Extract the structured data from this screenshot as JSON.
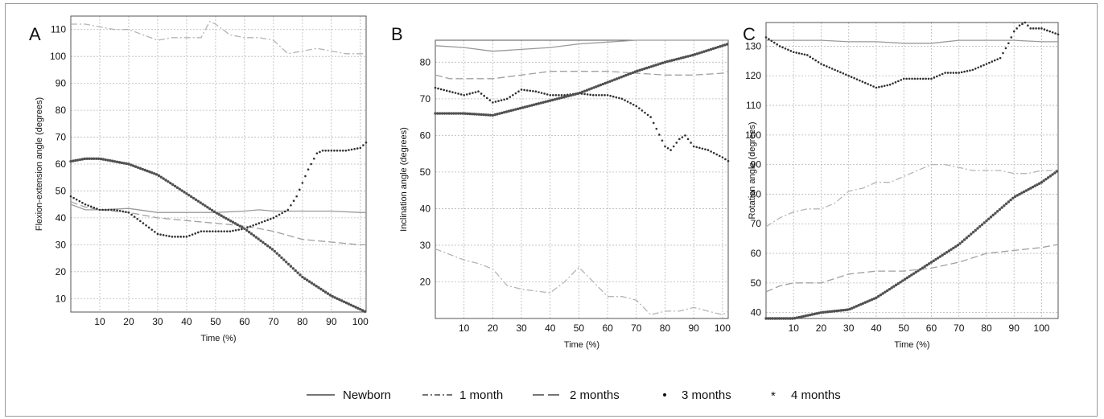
{
  "legend": [
    {
      "name": "Newborn",
      "style": "solid"
    },
    {
      "name": "1 month",
      "style": "dashdot"
    },
    {
      "name": "2 months",
      "style": "dashed"
    },
    {
      "name": "3 months",
      "style": "dotted"
    },
    {
      "name": "4 months",
      "style": "star"
    }
  ],
  "colors": {
    "Newborn": "#9a9a9a",
    "1 month": "#b5b5b5",
    "2 months": "#a0a0a0",
    "3 months": "#303030",
    "4 months": "#505050",
    "grid": "#b8b8b8"
  },
  "chart_data": [
    {
      "type": "line",
      "panel_label": "A",
      "xlabel": "Time (%)",
      "ylabel": "Flexion-extension angle (degrees)",
      "xlim": [
        0,
        102
      ],
      "ylim": [
        5,
        115
      ],
      "xticks": [
        10,
        20,
        30,
        40,
        50,
        60,
        70,
        80,
        90,
        100
      ],
      "yticks": [
        10,
        20,
        30,
        40,
        50,
        60,
        70,
        80,
        90,
        100,
        110
      ],
      "grid": true,
      "series": [
        {
          "name": "Newborn",
          "x": [
            0,
            5,
            10,
            20,
            30,
            40,
            50,
            60,
            65,
            70,
            80,
            90,
            100,
            102
          ],
          "y": [
            45,
            43,
            43,
            43.5,
            42,
            42,
            42,
            42.5,
            43,
            42.5,
            42.5,
            42.5,
            42,
            42
          ]
        },
        {
          "name": "1 month",
          "x": [
            0,
            5,
            10,
            15,
            20,
            25,
            30,
            35,
            40,
            45,
            48,
            50,
            55,
            60,
            65,
            70,
            75,
            80,
            85,
            90,
            95,
            100,
            102
          ],
          "y": [
            112,
            112,
            111,
            110,
            110,
            108,
            106,
            107,
            107,
            107,
            113,
            112,
            108,
            107,
            107,
            106,
            101,
            102,
            103,
            102,
            101,
            101,
            101
          ]
        },
        {
          "name": "2 months",
          "x": [
            0,
            5,
            10,
            20,
            30,
            40,
            50,
            60,
            70,
            80,
            90,
            100,
            102
          ],
          "y": [
            46,
            44,
            43,
            42,
            40,
            39,
            38,
            37,
            35,
            32,
            31,
            30,
            30
          ]
        },
        {
          "name": "3 months",
          "x": [
            0,
            5,
            10,
            15,
            20,
            25,
            30,
            35,
            40,
            45,
            50,
            55,
            60,
            65,
            70,
            75,
            78,
            80,
            82,
            85,
            87,
            90,
            95,
            100,
            102
          ],
          "y": [
            48,
            45,
            43,
            43,
            42,
            38,
            34,
            33,
            33,
            35,
            35,
            35,
            36,
            38,
            40,
            43,
            48,
            53,
            58,
            64,
            65,
            65,
            65,
            66,
            68
          ]
        },
        {
          "name": "4 months",
          "x": [
            0,
            5,
            10,
            20,
            30,
            40,
            50,
            60,
            70,
            80,
            90,
            100,
            102
          ],
          "y": [
            61,
            62,
            62,
            60,
            56,
            49,
            42,
            36,
            28,
            18,
            11,
            6,
            5
          ]
        }
      ]
    },
    {
      "type": "line",
      "panel_label": "B",
      "xlabel": "Time (%)",
      "ylabel": "Inclination angle (degrees)",
      "xlim": [
        0,
        102
      ],
      "ylim": [
        10,
        86
      ],
      "xticks": [
        10,
        20,
        30,
        40,
        50,
        60,
        70,
        80,
        90,
        100
      ],
      "yticks": [
        20,
        30,
        40,
        50,
        60,
        70,
        80
      ],
      "grid": true,
      "series": [
        {
          "name": "Newborn",
          "x": [
            0,
            10,
            20,
            30,
            40,
            50,
            60,
            70,
            80,
            90,
            100,
            102
          ],
          "y": [
            84.5,
            84,
            83,
            83.5,
            84,
            85,
            85.5,
            86,
            86,
            86,
            86,
            86
          ]
        },
        {
          "name": "1 month",
          "x": [
            0,
            10,
            15,
            20,
            25,
            30,
            35,
            40,
            45,
            50,
            55,
            60,
            65,
            70,
            75,
            80,
            85,
            90,
            95,
            100,
            102
          ],
          "y": [
            29,
            26,
            25,
            23.5,
            19,
            18,
            17.5,
            17,
            20,
            24,
            20,
            16,
            16,
            15,
            11,
            12,
            12,
            13,
            12,
            11,
            12
          ]
        },
        {
          "name": "2 months",
          "x": [
            0,
            5,
            10,
            20,
            30,
            40,
            50,
            60,
            70,
            80,
            90,
            100,
            102
          ],
          "y": [
            76.5,
            75.5,
            75.5,
            75.5,
            76.5,
            77.5,
            77.5,
            77.5,
            77,
            76.5,
            76.5,
            77,
            77.5
          ]
        },
        {
          "name": "3 months",
          "x": [
            0,
            5,
            10,
            15,
            20,
            25,
            30,
            35,
            40,
            45,
            50,
            55,
            60,
            65,
            70,
            75,
            80,
            82,
            85,
            87,
            90,
            95,
            100,
            102
          ],
          "y": [
            73,
            72,
            71,
            72,
            69,
            70,
            72.5,
            72,
            71,
            71,
            71.5,
            71,
            71,
            70,
            68,
            65,
            57,
            56,
            59,
            60,
            57,
            56,
            54,
            53
          ]
        },
        {
          "name": "4 months",
          "x": [
            0,
            10,
            20,
            30,
            40,
            50,
            60,
            70,
            80,
            90,
            100,
            102
          ],
          "y": [
            66,
            66,
            65.5,
            67.5,
            69.5,
            71.5,
            74.5,
            77.5,
            80,
            82,
            84.5,
            85
          ]
        }
      ]
    },
    {
      "type": "line",
      "panel_label": "C",
      "xlabel": "Time (%)",
      "ylabel": "Rotation angle (degrees)",
      "xlim": [
        0,
        106
      ],
      "ylim": [
        38,
        138
      ],
      "xticks": [
        10,
        20,
        30,
        40,
        50,
        60,
        70,
        80,
        90,
        100
      ],
      "yticks": [
        40,
        50,
        60,
        70,
        80,
        90,
        100,
        110,
        120,
        130
      ],
      "grid": true,
      "series": [
        {
          "name": "Newborn",
          "x": [
            0,
            10,
            20,
            30,
            40,
            50,
            60,
            70,
            80,
            90,
            100,
            106
          ],
          "y": [
            132,
            132,
            132,
            131.5,
            131.5,
            131,
            131,
            132,
            132,
            132,
            131.5,
            131.5
          ]
        },
        {
          "name": "1 month",
          "x": [
            0,
            5,
            10,
            15,
            20,
            25,
            30,
            35,
            40,
            45,
            50,
            55,
            60,
            65,
            70,
            75,
            80,
            85,
            90,
            95,
            100,
            106
          ],
          "y": [
            69,
            72,
            74,
            75,
            75,
            77,
            81,
            82,
            84,
            84,
            86,
            88,
            90,
            90,
            89,
            88,
            88,
            88,
            87,
            87,
            88,
            88
          ]
        },
        {
          "name": "2 months",
          "x": [
            0,
            5,
            10,
            20,
            30,
            40,
            50,
            60,
            70,
            80,
            90,
            100,
            106
          ],
          "y": [
            47,
            49,
            50,
            50,
            53,
            54,
            54,
            55,
            57,
            60,
            61,
            62,
            63
          ]
        },
        {
          "name": "3 months",
          "x": [
            0,
            5,
            10,
            15,
            20,
            25,
            30,
            35,
            40,
            45,
            50,
            55,
            60,
            65,
            70,
            75,
            80,
            85,
            88,
            90,
            92,
            94,
            96,
            100,
            106
          ],
          "y": [
            133,
            130,
            128,
            127,
            124,
            122,
            120,
            118,
            116,
            117,
            119,
            119,
            119,
            121,
            121,
            122,
            124,
            126,
            131,
            135,
            137,
            138,
            136,
            136,
            134
          ]
        },
        {
          "name": "4 months",
          "x": [
            0,
            10,
            20,
            30,
            40,
            50,
            60,
            70,
            80,
            90,
            100,
            106
          ],
          "y": [
            38,
            38,
            40,
            41,
            45,
            51,
            57,
            63,
            71,
            79,
            84,
            88
          ]
        }
      ]
    }
  ]
}
